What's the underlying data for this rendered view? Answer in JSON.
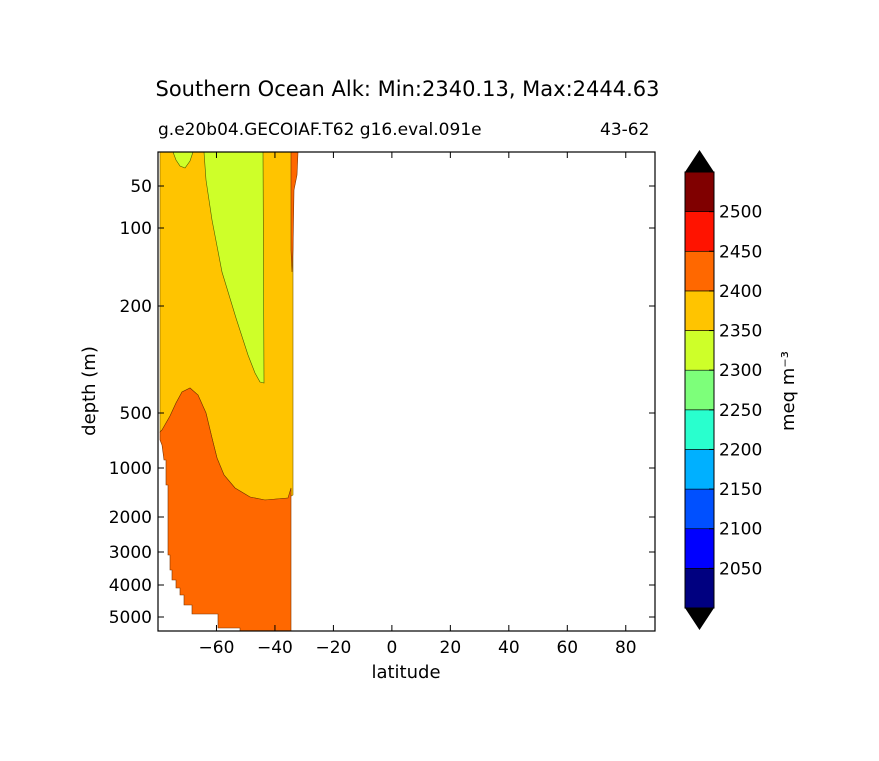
{
  "chart_data": {
    "type": "heatmap",
    "title": "Southern Ocean Alk: Min:2340.13, Max:2444.63",
    "subtitle_left": "g.e20b04.GECOIAF.T62 g16.eval.091e",
    "subtitle_right": "43-62",
    "xlabel": "latitude",
    "ylabel": "depth (m)",
    "xlim": [
      -80,
      90
    ],
    "x_ticks": [
      -60,
      -40,
      -20,
      0,
      20,
      40,
      60,
      80
    ],
    "x_tick_labels": [
      "−60",
      "−40",
      "−20",
      "0",
      "20",
      "40",
      "60",
      "80"
    ],
    "ylim": [
      0,
      5500
    ],
    "y_ticks": [
      50,
      100,
      200,
      500,
      1000,
      2000,
      3000,
      4000,
      5000
    ],
    "y_tick_labels": [
      "50",
      "100",
      "200",
      "500",
      "1000",
      "2000",
      "3000",
      "4000",
      "5000"
    ],
    "y_axis_inverted": true,
    "colorbar": {
      "label": "meq m⁻³",
      "levels": [
        2000,
        2050,
        2100,
        2150,
        2200,
        2250,
        2300,
        2350,
        2400,
        2450,
        2500,
        2550
      ],
      "tick_labels": [
        "2050",
        "2100",
        "2150",
        "2200",
        "2250",
        "2300",
        "2350",
        "2400",
        "2450",
        "2500"
      ],
      "colors": [
        "#000080",
        "#0000ff",
        "#0050ff",
        "#00b0ff",
        "#29ffce",
        "#7dff7a",
        "#ceff29",
        "#ffc400",
        "#ff6800",
        "#ff1300",
        "#800000"
      ],
      "extend": "both",
      "extend_colors": [
        "#000000",
        "#000000"
      ]
    },
    "regions": [
      {
        "level": "2350-2400",
        "color": "#ffc400",
        "description": "upper ocean band"
      },
      {
        "level": "2300-2350",
        "color": "#ceff29",
        "description": "surface/intermediate tongue near -58 to -43"
      },
      {
        "level": "2400-2450",
        "color": "#ff6800",
        "description": "deep water below ~600 m and near -33 at surface"
      }
    ],
    "data_lat_range": [
      -79,
      -33
    ]
  }
}
